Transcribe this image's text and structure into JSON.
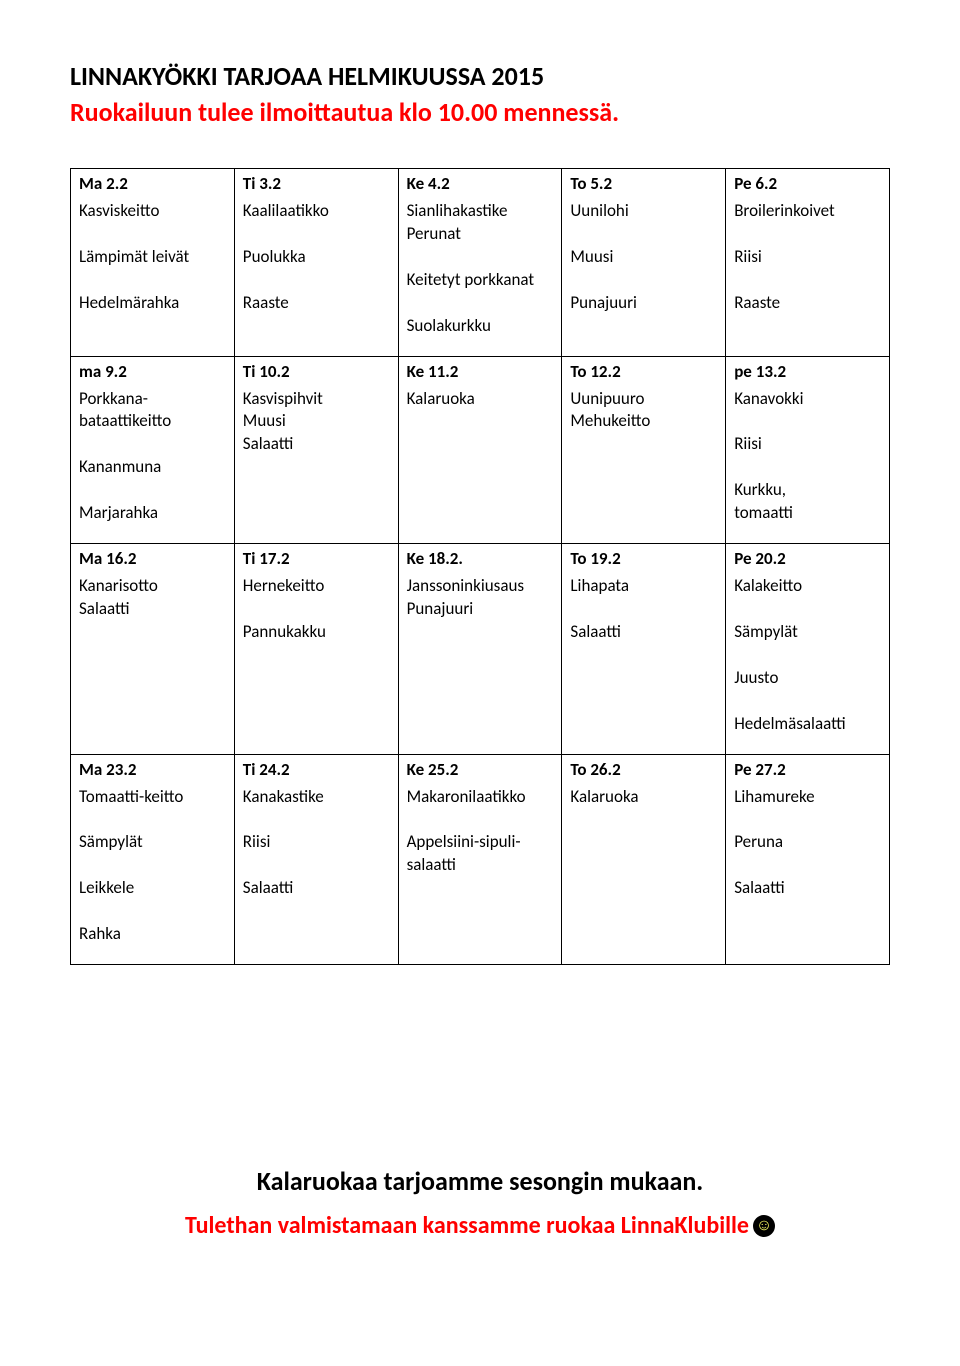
{
  "header": {
    "line1": "LINNAKYÖKKI TARJOAA HELMIKUUSSA 2015",
    "line2": "Ruokailuun tulee ilmoittautua klo 10.00 mennessä."
  },
  "colors": {
    "heading_black": "#000000",
    "heading_red": "#ff0000",
    "border": "#000000",
    "background": "#ffffff"
  },
  "menu": {
    "rows": [
      [
        {
          "hdr": "Ma 2.2",
          "body": "Kasviskeitto\n\nLämpimät leivät\n\nHedelmärahka"
        },
        {
          "hdr": "Ti 3.2",
          "body": "Kaalilaatikko\n\nPuolukka\n\nRaaste"
        },
        {
          "hdr": "Ke 4.2",
          "body": "Sianlihakastike\nPerunat\n\nKeitetyt porkkanat\n\nSuolakurkku"
        },
        {
          "hdr": "To 5.2",
          "body": "Uunilohi\n\nMuusi\n\nPunajuuri"
        },
        {
          "hdr": "Pe 6.2",
          "body": "Broilerinkoivet\n\nRiisi\n\nRaaste"
        }
      ],
      [
        {
          "hdr": "ma 9.2",
          "body": "Porkkana-\nbataattikeitto\n\nKananmuna\n\nMarjarahka"
        },
        {
          "hdr": "Ti 10.2",
          "body": "Kasvispihvit\nMuusi\nSalaatti"
        },
        {
          "hdr": "Ke 11.2",
          "body": "Kalaruoka"
        },
        {
          "hdr": "To 12.2",
          "body": "Uunipuuro\nMehukeitto"
        },
        {
          "hdr": "pe 13.2",
          "body": "Kanavokki\n\nRiisi\n\nKurkku,\ntomaatti"
        }
      ],
      [
        {
          "hdr": "Ma 16.2",
          "body": "Kanarisotto\nSalaatti"
        },
        {
          "hdr": "Ti 17.2",
          "body": "Hernekeitto\n\nPannukakku"
        },
        {
          "hdr": "Ke 18.2.",
          "body": "Janssoninkiusaus\nPunajuuri"
        },
        {
          "hdr": "To 19.2",
          "body": "Lihapata\n\nSalaatti"
        },
        {
          "hdr": "Pe 20.2",
          "body": "Kalakeitto\n\nSämpylät\n\nJuusto\n\nHedelmäsalaatti"
        }
      ],
      [
        {
          "hdr": "Ma 23.2",
          "body": "Tomaatti-keitto\n\nSämpylät\n\nLeikkele\n\nRahka"
        },
        {
          "hdr": "Ti 24.2",
          "body": "Kanakastike\n\nRiisi\n\nSalaatti"
        },
        {
          "hdr": "Ke 25.2",
          "body": "Makaronilaatikko\n\nAppelsiini-sipuli-\nsalaatti"
        },
        {
          "hdr": "To 26.2",
          "body": "Kalaruoka"
        },
        {
          "hdr": "Pe 27.2",
          "body": "Lihamureke\n\nPeruna\n\nSalaatti"
        }
      ]
    ]
  },
  "footer": {
    "line1": "Kalaruokaa tarjoamme sesongin mukaan.",
    "line2": "Tulethan valmistamaan kanssamme ruokaa LinnaKlubille",
    "smiley": "☺"
  }
}
